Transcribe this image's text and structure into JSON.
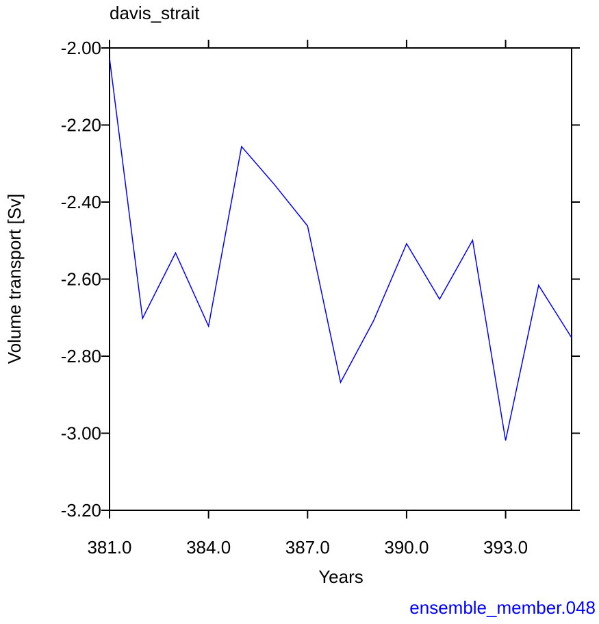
{
  "chart_data": {
    "type": "line",
    "title": "davis_strait",
    "xlabel": "Years",
    "ylabel": "Volume transport [Sv]",
    "annotation": "ensemble_member.048",
    "x": [
      381,
      382,
      383,
      384,
      385,
      386,
      387,
      388,
      389,
      390,
      391,
      392,
      393,
      394,
      395
    ],
    "series": [
      {
        "name": "davis_strait",
        "color": "#0000ff",
        "values": [
          -2.027,
          -2.702,
          -2.532,
          -2.722,
          -2.256,
          -2.355,
          -2.462,
          -2.868,
          -2.708,
          -2.508,
          -2.652,
          -2.499,
          -3.019,
          -2.616,
          -2.752
        ]
      }
    ],
    "xlim": [
      381,
      395
    ],
    "ylim": [
      -3.2,
      -2.0
    ],
    "xticks": [
      {
        "value": 381,
        "label": "381.0"
      },
      {
        "value": 384,
        "label": "384.0"
      },
      {
        "value": 387,
        "label": "387.0"
      },
      {
        "value": 390,
        "label": "390.0"
      },
      {
        "value": 393,
        "label": "393.0"
      }
    ],
    "yticks": [
      {
        "value": -3.2,
        "label": "-3.20"
      },
      {
        "value": -3.0,
        "label": "-3.00"
      },
      {
        "value": -2.8,
        "label": "-2.80"
      },
      {
        "value": -2.6,
        "label": "-2.60"
      },
      {
        "value": -2.4,
        "label": "-2.40"
      },
      {
        "value": -2.2,
        "label": "-2.20"
      },
      {
        "value": -2.0,
        "label": "-2.00"
      }
    ],
    "grid": false
  }
}
